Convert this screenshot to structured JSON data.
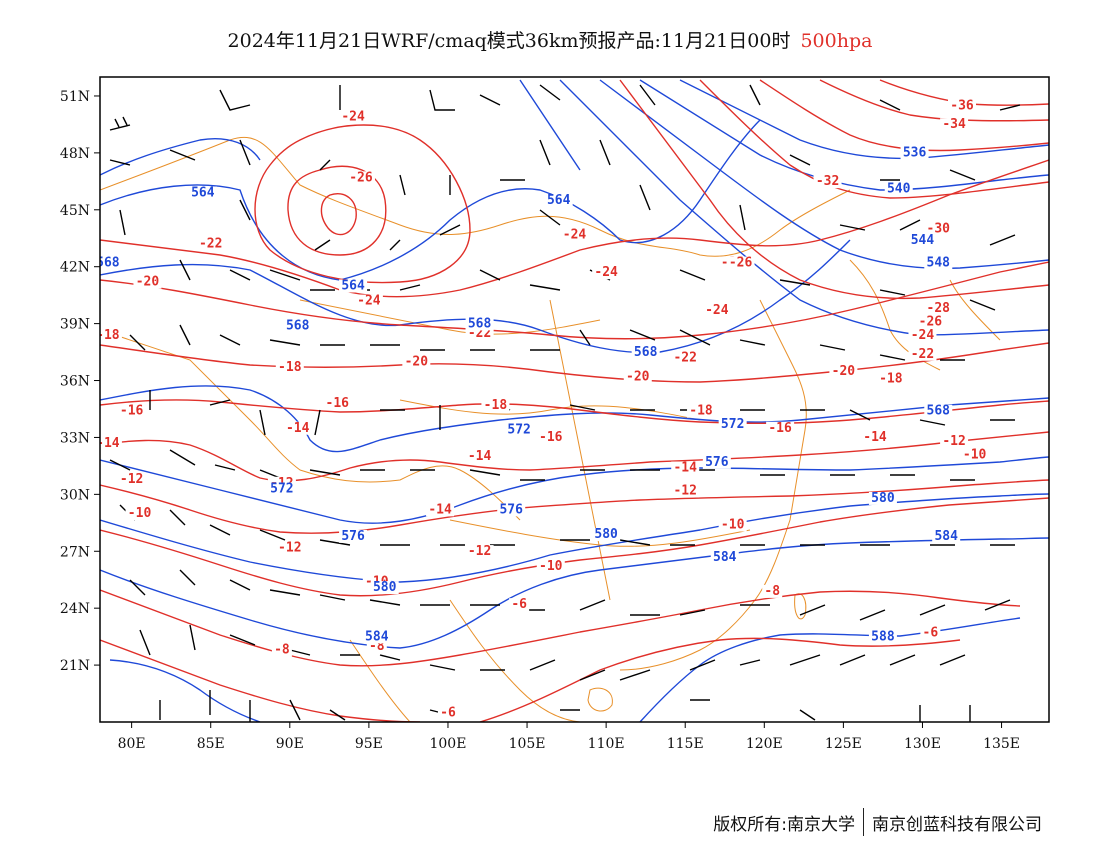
{
  "title": {
    "main": "2024年11月21日WRF/cmaq模式36km预报产品:11月21日00时",
    "level": "500hpa"
  },
  "colors": {
    "temperature": "#e0302a",
    "height": "#1f49d8",
    "coastline": "#e8902a",
    "barbs": "#000000",
    "level_text": "#e0302a"
  },
  "axes": {
    "x_ticks": [
      "80E",
      "85E",
      "90E",
      "95E",
      "100E",
      "105E",
      "110E",
      "115E",
      "120E",
      "125E",
      "130E",
      "135E"
    ],
    "y_ticks": [
      "51N",
      "48N",
      "45N",
      "42N",
      "39N",
      "36N",
      "33N",
      "30N",
      "27N",
      "24N",
      "21N"
    ],
    "lon_range": [
      78,
      138
    ],
    "lat_range": [
      18,
      52
    ]
  },
  "temperature_labels": [
    {
      "text": "-24",
      "lon": 94,
      "lat": 49.7
    },
    {
      "text": "-26",
      "lon": 94.5,
      "lat": 46.5
    },
    {
      "text": "-22",
      "lon": 85,
      "lat": 43
    },
    {
      "text": "-20",
      "lon": 81,
      "lat": 41
    },
    {
      "text": "-24",
      "lon": 95,
      "lat": 40
    },
    {
      "text": "-24",
      "lon": 108,
      "lat": 43.5
    },
    {
      "text": "-24",
      "lon": 110,
      "lat": 41.5
    },
    {
      "text": "-26",
      "lon": 118,
      "lat": 42
    },
    {
      "text": "-24",
      "lon": 117,
      "lat": 39.5
    },
    {
      "text": "-22",
      "lon": 115,
      "lat": 37
    },
    {
      "text": "-22",
      "lon": 102,
      "lat": 38.3
    },
    {
      "text": "-18",
      "lon": 78.5,
      "lat": 38.2
    },
    {
      "text": "-18",
      "lon": 90,
      "lat": 36.5
    },
    {
      "text": "-20",
      "lon": 98,
      "lat": 36.8
    },
    {
      "text": "-20",
      "lon": 112,
      "lat": 36
    },
    {
      "text": "-16",
      "lon": 80,
      "lat": 34.2
    },
    {
      "text": "-16",
      "lon": 93,
      "lat": 34.6
    },
    {
      "text": "-18",
      "lon": 103,
      "lat": 34.5
    },
    {
      "text": "-18",
      "lon": 116,
      "lat": 34.2
    },
    {
      "text": "-20",
      "lon": 125,
      "lat": 36.3
    },
    {
      "text": "-18",
      "lon": 128,
      "lat": 35.9
    },
    {
      "text": "-14",
      "lon": 78.5,
      "lat": 32.5
    },
    {
      "text": "-14",
      "lon": 90.5,
      "lat": 33.3
    },
    {
      "text": "-16",
      "lon": 106.5,
      "lat": 32.8
    },
    {
      "text": "-16",
      "lon": 121,
      "lat": 33.3
    },
    {
      "text": "-14",
      "lon": 102,
      "lat": 31.8
    },
    {
      "text": "-14",
      "lon": 127,
      "lat": 32.8
    },
    {
      "text": "-12",
      "lon": 80,
      "lat": 30.6
    },
    {
      "text": "-12",
      "lon": 89.5,
      "lat": 30.4
    },
    {
      "text": "-14",
      "lon": 99.5,
      "lat": 29
    },
    {
      "text": "-14",
      "lon": 115,
      "lat": 31.2
    },
    {
      "text": "-12",
      "lon": 115,
      "lat": 30
    },
    {
      "text": "-12",
      "lon": 132,
      "lat": 32.6
    },
    {
      "text": "-10",
      "lon": 133.3,
      "lat": 31.9
    },
    {
      "text": "-10",
      "lon": 80.5,
      "lat": 28.8
    },
    {
      "text": "-12",
      "lon": 90,
      "lat": 27
    },
    {
      "text": "-12",
      "lon": 102,
      "lat": 26.8
    },
    {
      "text": "-10",
      "lon": 95.5,
      "lat": 25.2
    },
    {
      "text": "-10",
      "lon": 106.5,
      "lat": 26
    },
    {
      "text": "-10",
      "lon": 118,
      "lat": 28.2
    },
    {
      "text": "-8",
      "lon": 120.5,
      "lat": 24.7
    },
    {
      "text": "-8",
      "lon": 89.5,
      "lat": 21.6
    },
    {
      "text": "-8",
      "lon": 95.5,
      "lat": 21.8
    },
    {
      "text": "-6",
      "lon": 100,
      "lat": 18.3
    },
    {
      "text": "-6",
      "lon": 104.5,
      "lat": 24
    },
    {
      "text": "-6",
      "lon": 130.5,
      "lat": 22.5
    },
    {
      "text": "-36",
      "lon": 132.5,
      "lat": 50.3
    },
    {
      "text": "-34",
      "lon": 132,
      "lat": 49.3
    },
    {
      "text": "-32",
      "lon": 124,
      "lat": 46.3
    },
    {
      "text": "-30",
      "lon": 131,
      "lat": 43.8
    },
    {
      "text": "-28",
      "lon": 131,
      "lat": 39.6
    },
    {
      "text": "-26",
      "lon": 130.5,
      "lat": 38.9
    },
    {
      "text": "-24",
      "lon": 130,
      "lat": 38.2
    },
    {
      "text": "-22",
      "lon": 130,
      "lat": 37.2
    },
    {
      "text": "-26",
      "lon": 118.5,
      "lat": 42
    }
  ],
  "height_labels": [
    {
      "text": "564",
      "lon": 84.5,
      "lat": 45.7
    },
    {
      "text": "564",
      "lon": 107,
      "lat": 45.3
    },
    {
      "text": "568",
      "lon": 78.5,
      "lat": 42
    },
    {
      "text": "564",
      "lon": 94,
      "lat": 40.8
    },
    {
      "text": "568",
      "lon": 90.5,
      "lat": 38.7
    },
    {
      "text": "568",
      "lon": 102,
      "lat": 38.8
    },
    {
      "text": "568",
      "lon": 112.5,
      "lat": 37.3
    },
    {
      "text": "572",
      "lon": 104.5,
      "lat": 33.2
    },
    {
      "text": "572",
      "lon": 118,
      "lat": 33.5
    },
    {
      "text": "572",
      "lon": 89.5,
      "lat": 30.1
    },
    {
      "text": "576",
      "lon": 104,
      "lat": 29
    },
    {
      "text": "576",
      "lon": 117,
      "lat": 31.5
    },
    {
      "text": "576",
      "lon": 94,
      "lat": 27.6
    },
    {
      "text": "580",
      "lon": 96,
      "lat": 24.9
    },
    {
      "text": "580",
      "lon": 110,
      "lat": 27.7
    },
    {
      "text": "580",
      "lon": 127.5,
      "lat": 29.6
    },
    {
      "text": "584",
      "lon": 117.5,
      "lat": 26.5
    },
    {
      "text": "584",
      "lon": 131.5,
      "lat": 27.6
    },
    {
      "text": "584",
      "lon": 95.5,
      "lat": 22.3
    },
    {
      "text": "588",
      "lon": 127.5,
      "lat": 22.3
    },
    {
      "text": "536",
      "lon": 129.5,
      "lat": 47.8
    },
    {
      "text": "540",
      "lon": 128.5,
      "lat": 45.9
    },
    {
      "text": "544",
      "lon": 130,
      "lat": 43.2
    },
    {
      "text": "548",
      "lon": 131,
      "lat": 42
    },
    {
      "text": "568",
      "lon": 131,
      "lat": 34.2
    }
  ]
}
